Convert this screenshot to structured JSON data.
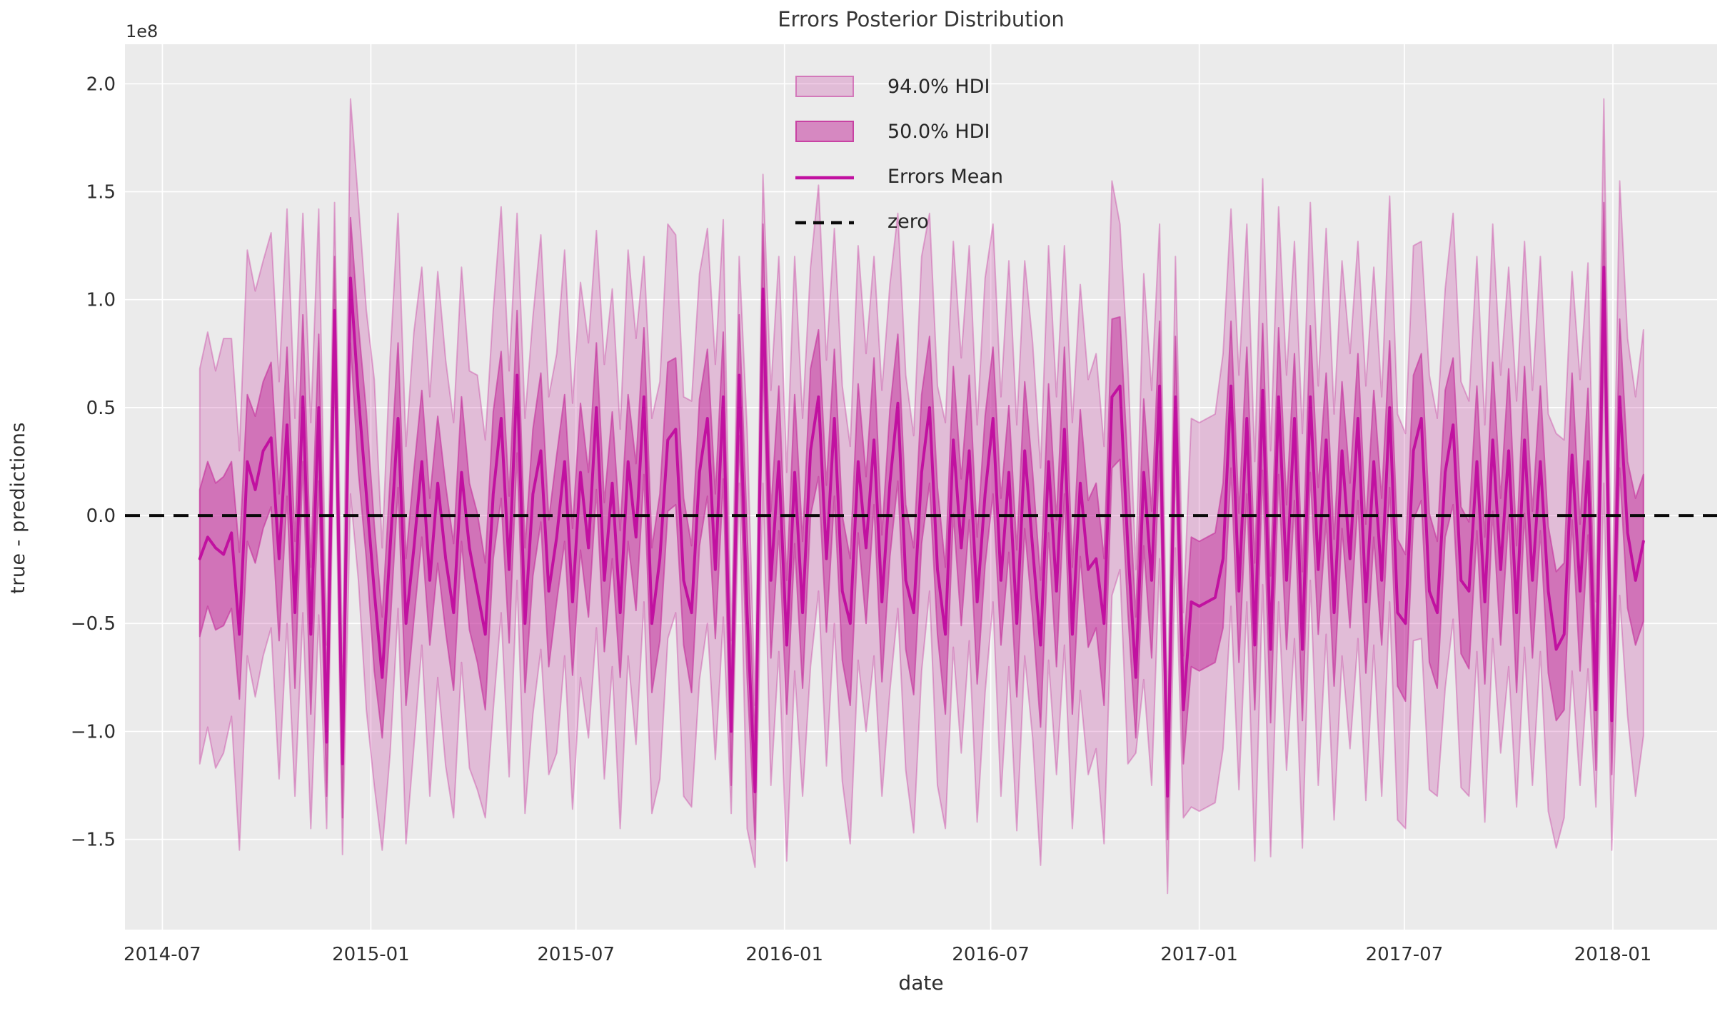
{
  "chart_data": {
    "type": "line",
    "title": "Errors Posterior Distribution",
    "xlabel": "date",
    "ylabel": "true - predictions",
    "y_offset_label": "1e8",
    "y_scale": "1e8",
    "grid": true,
    "legend_position": "upper center",
    "ylim": [
      -1.918,
      2.183
    ],
    "xlim": [
      "2014-05-29",
      "2018-04-03"
    ],
    "x_ticks": [
      {
        "date": "2014-07-01",
        "label": "2014-07"
      },
      {
        "date": "2015-01-01",
        "label": "2015-01"
      },
      {
        "date": "2015-07-01",
        "label": "2015-07"
      },
      {
        "date": "2016-01-01",
        "label": "2016-01"
      },
      {
        "date": "2016-07-01",
        "label": "2016-07"
      },
      {
        "date": "2017-01-01",
        "label": "2017-01"
      },
      {
        "date": "2017-07-01",
        "label": "2017-07"
      },
      {
        "date": "2018-01-01",
        "label": "2018-01"
      }
    ],
    "y_ticks": [
      {
        "value": 2.0,
        "label": "2.0"
      },
      {
        "value": 1.5,
        "label": "1.5"
      },
      {
        "value": 1.0,
        "label": "1.0"
      },
      {
        "value": 0.5,
        "label": "0.5"
      },
      {
        "value": 0.0,
        "label": "0.0"
      },
      {
        "value": -0.5,
        "label": "−0.5"
      },
      {
        "value": -1.0,
        "label": "−1.0"
      },
      {
        "value": -1.5,
        "label": "−1.5"
      }
    ],
    "zero_line": {
      "value": 0,
      "label": "zero",
      "style": "dashed",
      "color": "#0a0a0a"
    },
    "legend": {
      "items": [
        {
          "label": "94.0% HDI",
          "type": "patch",
          "fill_opacity": 0.26,
          "edge_opacity": 0.5
        },
        {
          "label": "50.0% HDI",
          "type": "patch",
          "fill_opacity": 0.55,
          "edge_opacity": 0.85
        },
        {
          "label": "Errors Mean",
          "type": "line"
        },
        {
          "label": "zero",
          "type": "dashed"
        }
      ]
    },
    "colors": {
      "base_pink": "#c5369e",
      "mean_line": "#c111a0",
      "axes_bg": "#ebebeb",
      "grid": "#ffffff",
      "zero": "#0a0a0a",
      "text": "#2e2e2e"
    },
    "series": {
      "name": "Errors",
      "x_start": "2014-08-03",
      "x_step_days": 7,
      "n": 183,
      "mean": [
        -0.2,
        -0.1,
        -0.15,
        -0.18,
        -0.08,
        -0.55,
        0.25,
        0.12,
        0.3,
        0.36,
        -0.2,
        0.42,
        -0.45,
        0.55,
        -0.55,
        0.5,
        -1.05,
        0.95,
        -1.15,
        1.1,
        0.55,
        0.1,
        -0.35,
        -0.75,
        -0.15,
        0.45,
        -0.5,
        -0.15,
        0.25,
        -0.3,
        0.15,
        -0.2,
        -0.45,
        0.2,
        -0.15,
        -0.35,
        -0.55,
        0.1,
        0.45,
        -0.25,
        0.65,
        -0.5,
        0.1,
        0.3,
        -0.35,
        -0.1,
        0.25,
        -0.4,
        0.2,
        -0.15,
        0.5,
        -0.3,
        0.15,
        -0.45,
        0.25,
        -0.1,
        0.55,
        -0.5,
        -0.2,
        0.35,
        0.4,
        -0.3,
        -0.45,
        0.2,
        0.45,
        -0.25,
        0.55,
        -1.0,
        0.65,
        -0.45,
        -1.28,
        1.05,
        -0.3,
        0.25,
        -0.6,
        0.2,
        -0.45,
        0.3,
        0.55,
        -0.2,
        0.45,
        -0.35,
        -0.5,
        0.25,
        -0.15,
        0.35,
        -0.4,
        0.15,
        0.52,
        -0.3,
        -0.45,
        0.2,
        0.5,
        -0.25,
        -0.55,
        0.35,
        -0.15,
        0.3,
        -0.4,
        0.1,
        0.45,
        -0.3,
        0.2,
        -0.5,
        0.3,
        -0.15,
        -0.6,
        0.25,
        -0.35,
        0.4,
        -0.55,
        0.15,
        -0.25,
        -0.2,
        -0.5,
        0.55,
        0.6,
        -0.15,
        -0.75,
        0.2,
        -0.3,
        0.6,
        -1.3,
        0.55,
        -0.9,
        -0.4,
        -0.42,
        -0.4,
        -0.38,
        -0.2,
        0.6,
        -0.35,
        0.45,
        -0.6,
        0.58,
        -0.62,
        0.55,
        -0.3,
        0.45,
        -0.62,
        0.55,
        -0.25,
        0.35,
        -0.45,
        0.3,
        -0.2,
        0.45,
        -0.4,
        0.25,
        -0.3,
        0.5,
        -0.45,
        -0.5,
        0.3,
        0.45,
        -0.35,
        -0.45,
        0.2,
        0.42,
        -0.3,
        -0.35,
        0.25,
        -0.4,
        0.35,
        -0.25,
        0.3,
        -0.45,
        0.35,
        -0.3,
        0.25,
        -0.35,
        -0.62,
        -0.55,
        0.28,
        -0.35,
        0.25,
        -0.9,
        1.15,
        -0.95,
        0.55,
        -0.08,
        -0.3,
        -0.12
      ],
      "hdi50_upper_offset": [
        0.32,
        0.35,
        0.3,
        0.36,
        0.33,
        0.38,
        0.31,
        0.34,
        0.32,
        0.35,
        0.3,
        0.36,
        0.33,
        0.38,
        0.31,
        0.34,
        0.25,
        0.25,
        0.25,
        0.28,
        0.33,
        0.38,
        0.31,
        0.28,
        0.32,
        0.35,
        0.3,
        0.36,
        0.33,
        0.38,
        0.31,
        0.34,
        0.32,
        0.35,
        0.3,
        0.36,
        0.33,
        0.38,
        0.31,
        0.34,
        0.3,
        0.35,
        0.3,
        0.36,
        0.33,
        0.38,
        0.31,
        0.34,
        0.32,
        0.35,
        0.3,
        0.36,
        0.33,
        0.38,
        0.31,
        0.34,
        0.32,
        0.35,
        0.3,
        0.36,
        0.33,
        0.38,
        0.31,
        0.34,
        0.32,
        0.35,
        0.3,
        0.25,
        0.28,
        0.38,
        0.22,
        0.3,
        0.32,
        0.35,
        0.3,
        0.36,
        0.33,
        0.38,
        0.31,
        0.34,
        0.32,
        0.35,
        0.3,
        0.36,
        0.33,
        0.38,
        0.31,
        0.34,
        0.32,
        0.35,
        0.3,
        0.36,
        0.33,
        0.38,
        0.31,
        0.34,
        0.32,
        0.35,
        0.3,
        0.36,
        0.33,
        0.38,
        0.31,
        0.34,
        0.32,
        0.35,
        0.3,
        0.36,
        0.33,
        0.38,
        0.31,
        0.34,
        0.32,
        0.35,
        0.3,
        0.36,
        0.32,
        0.38,
        0.28,
        0.34,
        0.32,
        0.3,
        0.2,
        0.28,
        0.25,
        0.3,
        0.3,
        0.3,
        0.3,
        0.35,
        0.3,
        0.36,
        0.33,
        0.38,
        0.31,
        0.34,
        0.32,
        0.35,
        0.3,
        0.36,
        0.33,
        0.38,
        0.31,
        0.34,
        0.32,
        0.35,
        0.3,
        0.36,
        0.33,
        0.38,
        0.31,
        0.34,
        0.32,
        0.35,
        0.3,
        0.36,
        0.33,
        0.38,
        0.31,
        0.34,
        0.32,
        0.35,
        0.3,
        0.36,
        0.33,
        0.38,
        0.31,
        0.34,
        0.32,
        0.35,
        0.3,
        0.36,
        0.33,
        0.38,
        0.31,
        0.34,
        0.28,
        0.3,
        0.25,
        0.36,
        0.33,
        0.38,
        0.31
      ],
      "hdi50_lower_offset": [
        0.36,
        0.32,
        0.38,
        0.33,
        0.35,
        0.3,
        0.37,
        0.34,
        0.36,
        0.32,
        0.38,
        0.33,
        0.35,
        0.3,
        0.37,
        0.34,
        0.25,
        0.25,
        0.25,
        0.3,
        0.35,
        0.3,
        0.37,
        0.28,
        0.36,
        0.32,
        0.38,
        0.33,
        0.35,
        0.3,
        0.37,
        0.34,
        0.36,
        0.32,
        0.38,
        0.33,
        0.35,
        0.3,
        0.37,
        0.34,
        0.36,
        0.32,
        0.38,
        0.33,
        0.35,
        0.3,
        0.37,
        0.34,
        0.36,
        0.32,
        0.38,
        0.33,
        0.35,
        0.3,
        0.37,
        0.34,
        0.36,
        0.32,
        0.38,
        0.33,
        0.35,
        0.3,
        0.37,
        0.34,
        0.36,
        0.32,
        0.38,
        0.25,
        0.28,
        0.3,
        0.22,
        0.3,
        0.36,
        0.32,
        0.32,
        0.33,
        0.35,
        0.3,
        0.37,
        0.34,
        0.36,
        0.32,
        0.38,
        0.33,
        0.35,
        0.3,
        0.37,
        0.34,
        0.36,
        0.32,
        0.38,
        0.33,
        0.35,
        0.3,
        0.37,
        0.34,
        0.36,
        0.32,
        0.38,
        0.33,
        0.35,
        0.3,
        0.37,
        0.34,
        0.36,
        0.32,
        0.38,
        0.33,
        0.35,
        0.3,
        0.37,
        0.34,
        0.36,
        0.32,
        0.38,
        0.33,
        0.34,
        0.3,
        0.28,
        0.34,
        0.36,
        0.3,
        0.2,
        0.28,
        0.25,
        0.3,
        0.3,
        0.3,
        0.3,
        0.32,
        0.38,
        0.33,
        0.35,
        0.3,
        0.37,
        0.34,
        0.36,
        0.32,
        0.38,
        0.33,
        0.35,
        0.3,
        0.37,
        0.34,
        0.36,
        0.32,
        0.38,
        0.33,
        0.35,
        0.3,
        0.37,
        0.34,
        0.36,
        0.32,
        0.38,
        0.33,
        0.35,
        0.3,
        0.37,
        0.34,
        0.36,
        0.32,
        0.38,
        0.33,
        0.35,
        0.3,
        0.37,
        0.34,
        0.36,
        0.32,
        0.38,
        0.33,
        0.35,
        0.3,
        0.37,
        0.34,
        0.28,
        0.35,
        0.25,
        0.33,
        0.35,
        0.3,
        0.37
      ],
      "hdi94_upper_offset": [
        0.88,
        0.95,
        0.82,
        1.0,
        0.9,
        0.85,
        0.98,
        0.92,
        0.88,
        0.95,
        0.82,
        1.0,
        0.9,
        0.85,
        0.98,
        0.92,
        0.45,
        0.5,
        0.45,
        0.83,
        0.9,
        0.85,
        0.98,
        0.6,
        0.88,
        0.95,
        0.82,
        1.0,
        0.9,
        0.85,
        0.98,
        0.92,
        0.88,
        0.95,
        0.82,
        1.0,
        0.9,
        0.85,
        0.98,
        0.92,
        0.75,
        0.95,
        0.82,
        1.0,
        0.9,
        0.85,
        0.98,
        0.92,
        0.88,
        0.95,
        0.82,
        1.0,
        0.9,
        0.85,
        0.98,
        0.92,
        0.65,
        0.95,
        0.82,
        1.0,
        0.9,
        0.85,
        0.98,
        0.92,
        0.88,
        0.95,
        0.82,
        0.42,
        0.55,
        0.85,
        0.4,
        0.53,
        0.88,
        0.95,
        0.8,
        1.0,
        0.9,
        0.85,
        0.98,
        0.92,
        0.88,
        0.95,
        0.82,
        1.0,
        0.9,
        0.85,
        0.98,
        0.92,
        0.88,
        0.95,
        0.82,
        1.0,
        0.9,
        0.85,
        0.98,
        0.92,
        0.88,
        0.95,
        0.82,
        1.0,
        0.9,
        0.85,
        0.98,
        0.92,
        0.88,
        0.95,
        0.82,
        1.0,
        0.9,
        0.85,
        0.98,
        0.92,
        0.88,
        0.95,
        0.82,
        1.0,
        0.75,
        0.85,
        0.5,
        0.92,
        0.88,
        0.75,
        0.38,
        0.65,
        0.45,
        0.85,
        0.85,
        0.85,
        0.85,
        0.95,
        0.82,
        1.0,
        0.9,
        0.85,
        0.98,
        0.92,
        0.88,
        0.95,
        0.82,
        1.0,
        0.9,
        0.85,
        0.98,
        0.92,
        0.88,
        0.95,
        0.82,
        1.0,
        0.9,
        0.85,
        0.98,
        0.92,
        0.88,
        0.95,
        0.82,
        1.0,
        0.9,
        0.85,
        0.98,
        0.92,
        0.88,
        0.95,
        0.82,
        1.0,
        0.9,
        0.85,
        0.98,
        0.92,
        0.88,
        0.95,
        0.82,
        1.0,
        0.9,
        0.85,
        0.98,
        0.92,
        0.5,
        0.78,
        0.45,
        1.0,
        0.9,
        0.85,
        0.98
      ],
      "hdi94_lower_offset": [
        0.95,
        0.88,
        1.02,
        0.92,
        0.85,
        1.0,
        0.9,
        0.96,
        0.95,
        0.88,
        1.02,
        0.92,
        0.85,
        1.0,
        0.9,
        0.96,
        0.4,
        0.4,
        0.42,
        1.0,
        0.85,
        1.0,
        0.9,
        0.8,
        0.95,
        0.88,
        1.02,
        0.92,
        0.85,
        1.0,
        0.9,
        0.96,
        0.95,
        0.88,
        1.02,
        0.92,
        0.85,
        1.0,
        0.9,
        0.96,
        0.95,
        0.88,
        1.02,
        0.92,
        0.85,
        1.0,
        0.9,
        0.96,
        0.95,
        0.88,
        1.02,
        0.92,
        0.85,
        1.0,
        0.9,
        0.96,
        0.95,
        0.88,
        1.02,
        0.92,
        0.85,
        1.0,
        0.9,
        0.96,
        0.95,
        0.88,
        1.02,
        0.38,
        0.5,
        1.0,
        0.35,
        0.9,
        0.95,
        0.88,
        1.0,
        0.92,
        0.85,
        1.0,
        0.9,
        0.96,
        0.95,
        0.88,
        1.02,
        0.92,
        0.85,
        1.0,
        0.9,
        0.96,
        0.95,
        0.88,
        1.02,
        0.92,
        0.85,
        1.0,
        0.9,
        0.96,
        0.95,
        0.88,
        1.02,
        0.92,
        0.85,
        1.0,
        0.9,
        0.96,
        0.95,
        0.88,
        1.02,
        0.92,
        0.85,
        1.0,
        0.9,
        0.96,
        0.95,
        0.88,
        1.02,
        0.92,
        0.85,
        1.0,
        0.35,
        0.96,
        0.95,
        0.8,
        0.45,
        0.7,
        0.5,
        0.95,
        0.95,
        0.95,
        0.95,
        0.88,
        1.02,
        0.92,
        0.85,
        1.0,
        0.9,
        0.96,
        0.95,
        0.88,
        1.02,
        0.92,
        0.85,
        1.0,
        0.9,
        0.96,
        0.95,
        0.88,
        1.02,
        0.92,
        0.85,
        1.0,
        0.9,
        0.96,
        0.95,
        0.88,
        1.02,
        0.92,
        0.85,
        1.0,
        0.9,
        0.96,
        0.95,
        0.88,
        1.02,
        0.92,
        0.85,
        1.0,
        0.9,
        0.96,
        0.95,
        0.88,
        1.02,
        0.92,
        0.85,
        1.0,
        0.9,
        0.96,
        0.45,
        1.0,
        0.6,
        0.92,
        0.85,
        1.0,
        0.9
      ]
    }
  }
}
